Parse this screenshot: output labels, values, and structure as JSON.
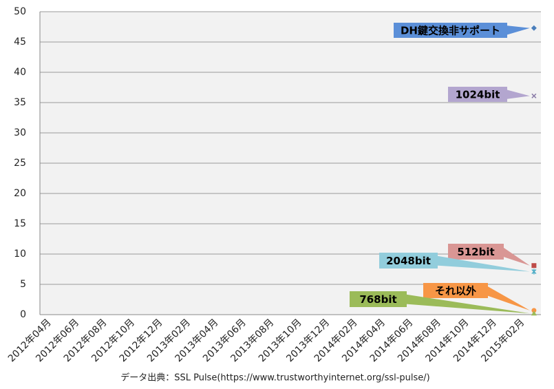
{
  "chart_data": {
    "type": "scatter",
    "caption": "データ出典：SSL Pulse(https://www.trustworthyinternet.org/ssl-pulse/)",
    "categories": [
      "2012年04月",
      null,
      "2012年06月",
      null,
      "2012年08月",
      null,
      "2012年10月",
      null,
      "2012年12月",
      null,
      "2013年02月",
      null,
      "2013年04月",
      null,
      "2013年06月",
      null,
      "2013年08月",
      null,
      "2013年10月",
      null,
      "2013年12月",
      null,
      "2014年02月",
      null,
      "2014年04月",
      null,
      "2014年06月",
      null,
      "2014年08月",
      null,
      "2014年10月",
      null,
      "2014年12月",
      null,
      "2015年02月",
      null
    ],
    "ylim": [
      0,
      50
    ],
    "yticks": [
      0,
      5,
      10,
      15,
      20,
      25,
      30,
      35,
      40,
      45,
      50
    ],
    "grid": true,
    "series": [
      {
        "name": "DH鍵交換非サポート",
        "color": "#4a7ebb",
        "values": [
          null,
          null,
          null,
          null,
          null,
          null,
          null,
          null,
          null,
          null,
          null,
          null,
          null,
          null,
          null,
          null,
          null,
          null,
          null,
          null,
          null,
          null,
          null,
          null,
          null,
          null,
          null,
          null,
          null,
          null,
          null,
          null,
          null,
          null,
          null,
          47.3
        ]
      },
      {
        "name": "1024bit",
        "color": "#8a7ca8",
        "values": [
          null,
          null,
          null,
          null,
          null,
          null,
          null,
          null,
          null,
          null,
          null,
          null,
          null,
          null,
          null,
          null,
          null,
          null,
          null,
          null,
          null,
          null,
          null,
          null,
          null,
          null,
          null,
          null,
          null,
          null,
          null,
          null,
          null,
          null,
          null,
          36.1
        ]
      },
      {
        "name": "512bit",
        "color": "#be4b48",
        "values": [
          null,
          null,
          null,
          null,
          null,
          null,
          null,
          null,
          null,
          null,
          null,
          null,
          null,
          null,
          null,
          null,
          null,
          null,
          null,
          null,
          null,
          null,
          null,
          null,
          null,
          null,
          null,
          null,
          null,
          null,
          null,
          null,
          null,
          null,
          null,
          8.1
        ]
      },
      {
        "name": "2048bit",
        "color": "#4bacc6",
        "values": [
          null,
          null,
          null,
          null,
          null,
          null,
          null,
          null,
          null,
          null,
          null,
          null,
          null,
          null,
          null,
          null,
          null,
          null,
          null,
          null,
          null,
          null,
          null,
          null,
          null,
          null,
          null,
          null,
          null,
          null,
          null,
          null,
          null,
          null,
          null,
          7.1
        ]
      },
      {
        "name": "それ以外",
        "color": "#f79646",
        "values": [
          null,
          null,
          null,
          null,
          null,
          null,
          null,
          null,
          null,
          null,
          null,
          null,
          null,
          null,
          null,
          null,
          null,
          null,
          null,
          null,
          null,
          null,
          null,
          null,
          null,
          null,
          null,
          null,
          null,
          null,
          null,
          null,
          null,
          null,
          null,
          0.7
        ]
      },
      {
        "name": "768bit",
        "color": "#9bbb59",
        "values": [
          null,
          null,
          null,
          null,
          null,
          null,
          null,
          null,
          null,
          null,
          null,
          null,
          null,
          null,
          null,
          null,
          null,
          null,
          null,
          null,
          null,
          null,
          null,
          null,
          null,
          null,
          null,
          null,
          null,
          null,
          null,
          null,
          null,
          null,
          null,
          0.2
        ]
      }
    ]
  }
}
